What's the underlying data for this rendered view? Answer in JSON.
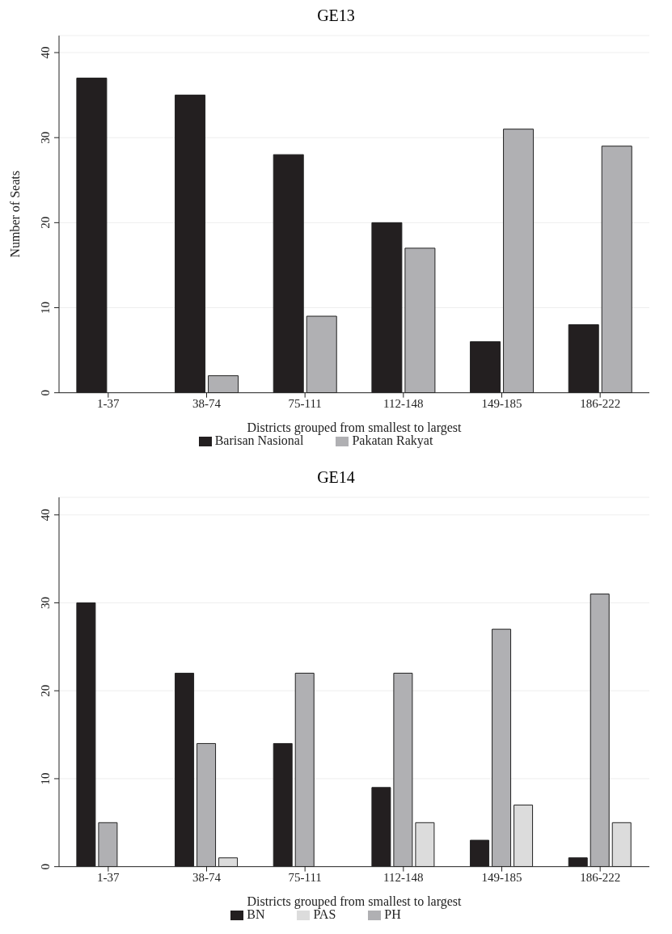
{
  "chart_data": [
    {
      "type": "bar",
      "title": "GE13",
      "xlabel": "Districts grouped from smallest to largest",
      "ylabel": "Number of Seats",
      "categories": [
        "1-37",
        "38-74",
        "75-111",
        "112-148",
        "149-185",
        "186-222"
      ],
      "series": [
        {
          "name": "Barisan Nasional",
          "color": "#231f20",
          "values": [
            37,
            35,
            28,
            20,
            6,
            8
          ]
        },
        {
          "name": "Pakatan Rakyat",
          "color": "#b0b0b3",
          "values": [
            0,
            2,
            9,
            17,
            31,
            29
          ]
        }
      ],
      "ylim": [
        0,
        42
      ],
      "yticks": [
        0,
        10,
        20,
        30,
        40
      ],
      "grid": "y",
      "legend": "bottom"
    },
    {
      "type": "bar",
      "title": "GE14",
      "xlabel": "Districts grouped from smallest to largest",
      "categories": [
        "1-37",
        "38-74",
        "75-111",
        "112-148",
        "149-185",
        "186-222"
      ],
      "series": [
        {
          "name": "BN",
          "color": "#231f20",
          "values": [
            30,
            22,
            14,
            9,
            3,
            1
          ]
        },
        {
          "name": "PH",
          "color": "#b0b0b3",
          "values": [
            5,
            14,
            22,
            22,
            27,
            31
          ]
        },
        {
          "name": "PAS",
          "color": "#dcdcdc",
          "values": [
            0,
            1,
            0,
            5,
            7,
            5
          ]
        }
      ],
      "ylim": [
        0,
        42
      ],
      "yticks": [
        0,
        10,
        20,
        30,
        40
      ],
      "grid": "y",
      "legend": "bottom"
    }
  ]
}
